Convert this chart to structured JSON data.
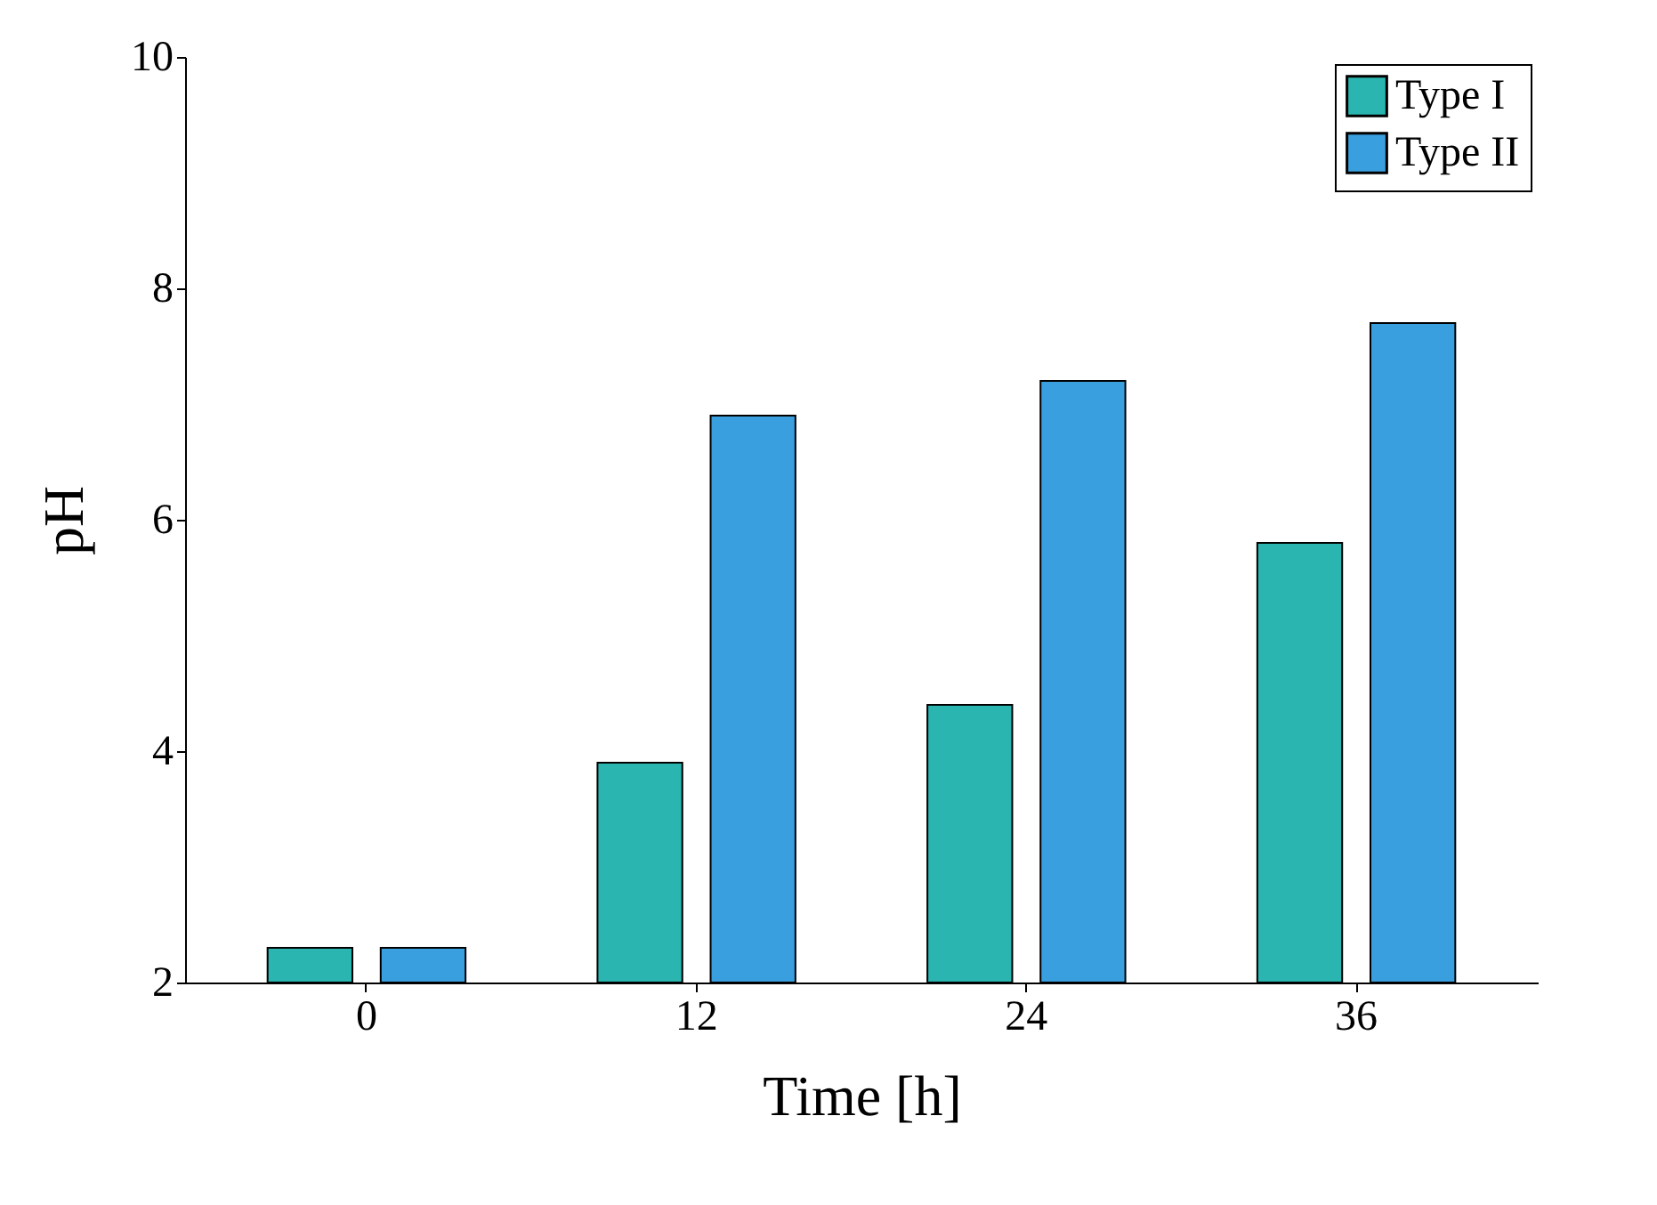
{
  "chart_data": {
    "type": "bar",
    "xlabel": "Time [h]",
    "ylabel": "pH",
    "categories": [
      "0",
      "12",
      "24",
      "36"
    ],
    "series": [
      {
        "name": "Type I",
        "color": "#2ab5b0",
        "values": [
          2.3,
          3.9,
          4.4,
          5.8
        ]
      },
      {
        "name": "Type II",
        "color": "#3a9fde",
        "values": [
          2.3,
          6.9,
          7.2,
          7.7
        ]
      }
    ],
    "ylim": [
      2,
      10
    ],
    "yticks": [
      2,
      4,
      6,
      8,
      10
    ],
    "grid": false,
    "legend": "top right"
  }
}
